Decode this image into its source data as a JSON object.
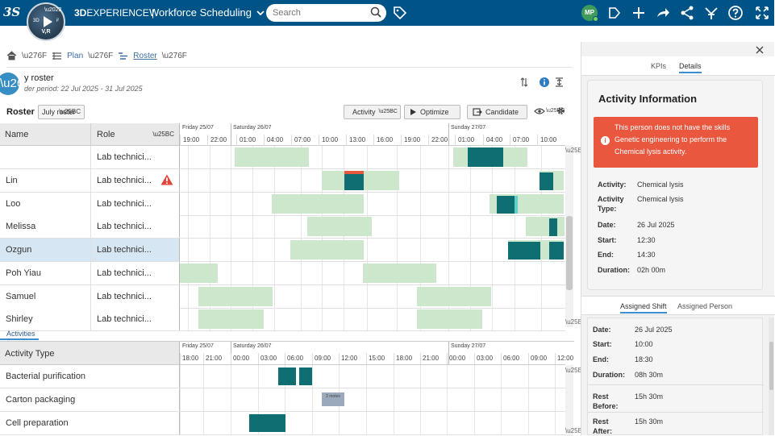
{
  "topbar": {
    "brand_bold": "3D",
    "brand_rest": "EXPERIENCE |",
    "app_title": "Workforce Scheduling",
    "search_placeholder": "Search",
    "avatar_initials": "MP",
    "compass_label": "V,R",
    "compass_3d": "3D",
    "compass_i": "i²"
  },
  "breadcrumb": {
    "plan": "Plan",
    "roster": "Roster"
  },
  "roster_header": {
    "title": "y roster",
    "period": "der period: 22 Jul 2025 - 31 Jul 2025"
  },
  "toolbar": {
    "roster_label": "Roster",
    "roster_select": "July roster",
    "activity_btn": "Activity",
    "optimize_btn": "Optimize",
    "candidate_btn": "Candidate"
  },
  "colors": {
    "shift": "#cde7cd",
    "activity": "#0f6e72",
    "conflict": "#e9573f",
    "selected_row": "#d6e7f3",
    "accent": "#3b8ed0",
    "topbar": "#005386"
  },
  "grid": {
    "col_name": "Name",
    "col_role": "Role",
    "days": [
      {
        "label": "Friday 25/07"
      },
      {
        "label": "Saturday 26/07"
      },
      {
        "label": "Sunday 27/07"
      }
    ],
    "hours": [
      "19:00",
      "22:00",
      "01:00",
      "04:00",
      "07:00",
      "10:00",
      "13:00",
      "16:00",
      "19:00",
      "22:00",
      "01:00",
      "04:00",
      "07:00",
      "10:00"
    ],
    "rows": [
      {
        "name": "",
        "role": "Lab technici...",
        "warn": false,
        "selected": false
      },
      {
        "name": "Lin",
        "role": "Lab technici...",
        "warn": true,
        "selected": false
      },
      {
        "name": "Loo",
        "role": "Lab technici...",
        "warn": false,
        "selected": false
      },
      {
        "name": "Melissa",
        "role": "Lab technici...",
        "warn": false,
        "selected": false
      },
      {
        "name": "Ozgun",
        "role": "Lab technici...",
        "warn": false,
        "selected": true
      },
      {
        "name": "Poh Yiau",
        "role": "Lab technici...",
        "warn": false,
        "selected": false
      },
      {
        "name": "Samuel",
        "role": "Lab technici...",
        "warn": false,
        "selected": false
      },
      {
        "name": "Shirley",
        "role": "Lab technici...",
        "warn": false,
        "selected": false
      }
    ]
  },
  "activities": {
    "tab_label": "Activities",
    "col_type": "Activity Type",
    "days": [
      {
        "label": "Friday 25/07"
      },
      {
        "label": "Saturday 26/07"
      },
      {
        "label": "Sunday 27/07"
      }
    ],
    "hours": [
      "18:00",
      "21:00",
      "00:00",
      "03:00",
      "06:00",
      "09:00",
      "12:00",
      "15:00",
      "18:00",
      "21:00",
      "00:00",
      "03:00",
      "06:00",
      "09:00",
      "12:00"
    ],
    "rows": [
      {
        "name": "Bacterial purification"
      },
      {
        "name": "Carton packaging",
        "multi_label": "2 motes"
      },
      {
        "name": "Cell preparation"
      }
    ]
  },
  "right_panel": {
    "tab_kpis": "KPIs",
    "tab_details": "Details",
    "card_title": "Activity Information",
    "alert_text": "This person does not have the skills Genetic engineering to perform the Chemical lysis activity.",
    "fields": [
      {
        "label": "Activity:",
        "value": "Chemical lysis"
      },
      {
        "label": "Activity Type:",
        "value": "Chemical lysis"
      },
      {
        "label": "Date:",
        "value": "26 Jul 2025"
      },
      {
        "label": "Start:",
        "value": "12:30"
      },
      {
        "label": "End:",
        "value": "14:30"
      },
      {
        "label": "Duration:",
        "value": "02h 00m"
      }
    ],
    "tab_assigned_shift": "Assigned Shift",
    "tab_assigned_person": "Assigned Person",
    "shift_fields": [
      {
        "label": "Date:",
        "value": "26 Jul 2025"
      },
      {
        "label": "Start:",
        "value": "10:00"
      },
      {
        "label": "End:",
        "value": "18:30"
      },
      {
        "label": "Duration:",
        "value": "08h 30m"
      },
      {
        "label": "Rest Before:",
        "value": "15h 30m"
      },
      {
        "label": "Rest After:",
        "value": "15h 30m"
      }
    ]
  }
}
